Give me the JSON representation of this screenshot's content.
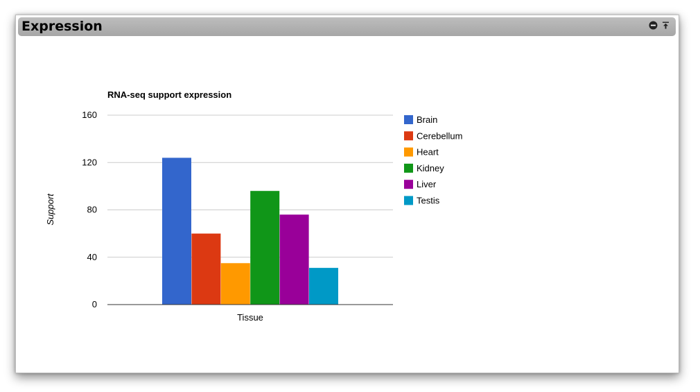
{
  "panel": {
    "title": "Expression",
    "icons": [
      "toggle-circle-icon",
      "collapse-icon"
    ]
  },
  "chart_data": {
    "type": "bar",
    "title": "RNA-seq support expression",
    "xlabel": "Tissue",
    "ylabel": "Support",
    "ylim": [
      0,
      160
    ],
    "yticks": [
      0,
      40,
      80,
      120,
      160
    ],
    "grid": true,
    "legend_position": "right",
    "series": [
      {
        "name": "Brain",
        "value": 124,
        "color": "#3366cc"
      },
      {
        "name": "Cerebellum",
        "value": 60,
        "color": "#dc3912"
      },
      {
        "name": "Heart",
        "value": 35,
        "color": "#ff9900"
      },
      {
        "name": "Kidney",
        "value": 96,
        "color": "#109618"
      },
      {
        "name": "Liver",
        "value": 76,
        "color": "#990099"
      },
      {
        "name": "Testis",
        "value": 31,
        "color": "#0099c6"
      }
    ]
  }
}
